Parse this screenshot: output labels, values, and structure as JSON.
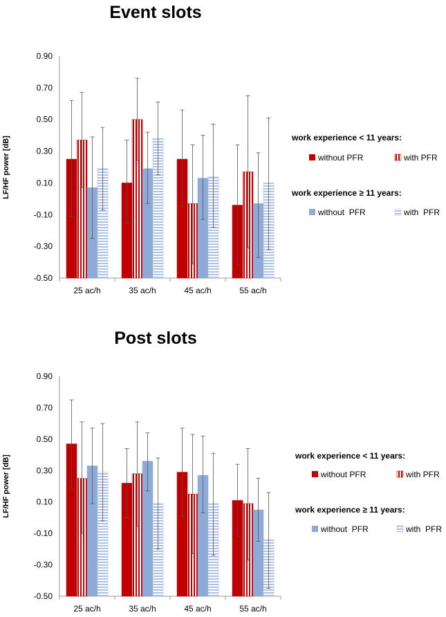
{
  "colors": {
    "red": "#c00000",
    "red_light": "#e88a8a",
    "blue": "#8eaad6",
    "blue_light": "#d0dcf0",
    "error_bar": "#555555",
    "axis": "#999999",
    "text": "#000000"
  },
  "chart_data": [
    {
      "type": "bar",
      "title": "Event slots",
      "ylabel": "LF/HF power [dB]",
      "xlabel": "",
      "ylim": [
        -0.5,
        0.9
      ],
      "yticks": [
        "0.90",
        "0.70",
        "0.50",
        "0.30",
        "0.10",
        "-0.10",
        "-0.30",
        "-0.50"
      ],
      "categories": [
        "25 ac/h",
        "35 ac/h",
        "45 ac/h",
        "55 ac/h"
      ],
      "legend": {
        "group1_title": "work experience < 11 years:",
        "group1_items": [
          "without PFR",
          "with PFR"
        ],
        "group2_title": "work experience ≥ 11 years:",
        "group2_items": [
          "without  PFR",
          "with  PFR"
        ]
      },
      "series": [
        {
          "name": "work experience < 11 years: without PFR",
          "values": [
            0.25,
            0.1,
            0.25,
            -0.04
          ],
          "err_high": [
            0.62,
            0.37,
            0.56,
            0.34
          ],
          "err_low": [
            -0.11,
            -0.15,
            -0.05,
            -0.42
          ]
        },
        {
          "name": "work experience < 11 years: with PFR",
          "values": [
            0.37,
            0.5,
            -0.03,
            0.17
          ],
          "err_high": [
            0.67,
            0.76,
            0.34,
            0.65
          ],
          "err_low": [
            0.07,
            0.24,
            -0.41,
            -0.31
          ]
        },
        {
          "name": "work experience ≥ 11 years: without PFR",
          "values": [
            0.07,
            0.19,
            0.13,
            -0.03
          ],
          "err_high": [
            0.39,
            0.42,
            0.4,
            0.29
          ],
          "err_low": [
            -0.25,
            -0.03,
            -0.13,
            -0.37
          ]
        },
        {
          "name": "work experience ≥ 11 years: with PFR",
          "values": [
            0.19,
            0.38,
            0.14,
            0.1
          ],
          "err_high": [
            0.45,
            0.61,
            0.47,
            0.51
          ],
          "err_low": [
            -0.07,
            0.15,
            -0.18,
            -0.32
          ]
        }
      ]
    },
    {
      "type": "bar",
      "title": "Post slots",
      "ylabel": "LF/HF power [dB]",
      "xlabel": "",
      "ylim": [
        -0.5,
        0.9
      ],
      "yticks": [
        "0.90",
        "0.70",
        "0.50",
        "0.30",
        "0.10",
        "-0.10",
        "-0.30",
        "-0.50"
      ],
      "categories": [
        "25 ac/h",
        "35 ac/h",
        "45 ac/h",
        "55 ac/h"
      ],
      "legend": {
        "group1_title": "work experience < 11 years:",
        "group1_items": [
          "without PFR",
          "with PFR"
        ],
        "group2_title": "work experience ≥ 11 years:",
        "group2_items": [
          "without  PFR",
          "with  PFR"
        ]
      },
      "series": [
        {
          "name": "work experience < 11 years: without PFR",
          "values": [
            0.47,
            0.22,
            0.29,
            0.11
          ],
          "err_high": [
            0.75,
            0.44,
            0.57,
            0.34
          ],
          "err_low": [
            0.19,
            0.0,
            0.01,
            -0.12
          ]
        },
        {
          "name": "work experience < 11 years: with PFR",
          "values": [
            0.25,
            0.28,
            0.15,
            0.09
          ],
          "err_high": [
            0.61,
            0.61,
            0.53,
            0.44
          ],
          "err_low": [
            -0.1,
            -0.06,
            -0.23,
            -0.27
          ]
        },
        {
          "name": "work experience ≥ 11 years: without PFR",
          "values": [
            0.33,
            0.36,
            0.27,
            0.05
          ],
          "err_high": [
            0.57,
            0.54,
            0.52,
            0.25
          ],
          "err_low": [
            0.09,
            0.17,
            0.03,
            -0.15
          ]
        },
        {
          "name": "work experience ≥ 11 years: with PFR",
          "values": [
            0.29,
            0.09,
            0.09,
            -0.14
          ],
          "err_high": [
            0.6,
            0.38,
            0.41,
            0.16
          ],
          "err_low": [
            -0.02,
            -0.2,
            -0.24,
            -0.45
          ]
        }
      ]
    }
  ]
}
